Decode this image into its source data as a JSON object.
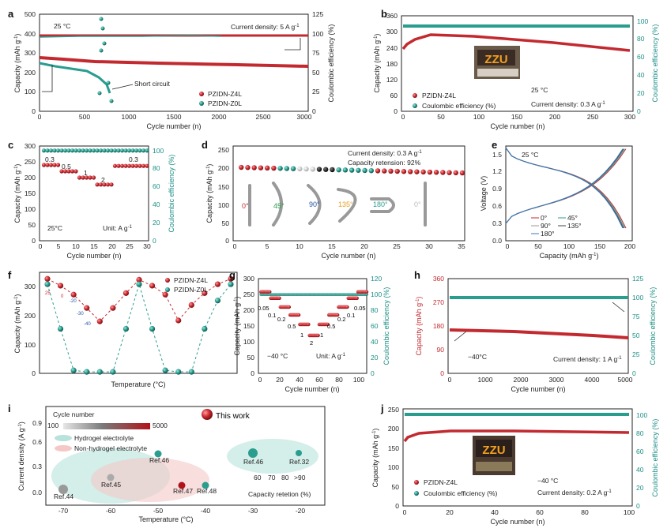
{
  "colors": {
    "red": "#c22a30",
    "teal": "#2a9d8f",
    "teal_axis": "#1d8f86",
    "dark": "#222222"
  },
  "panels": {
    "a": {
      "letter": "a",
      "temp": "25 °C",
      "note": "Current density: 5 A g",
      "note_sup": "-1",
      "short": "Short circuit",
      "legend": [
        "PZIDN-Z4L",
        "PZIDN-Z0L"
      ],
      "xlabel": "Cycle number (n)",
      "ylabel": "Capacity (mAh g",
      "ylabel_sup": "-1",
      "ylabel_end": ")",
      "y2label": "Coulombic efficiency (%)",
      "xticks": [
        "0",
        "500",
        "1000",
        "1500",
        "2000",
        "2500",
        "3000"
      ],
      "yticks": [
        "0",
        "100",
        "200",
        "300",
        "400",
        "500"
      ],
      "y2ticks": [
        "0",
        "25",
        "50",
        "75",
        "100",
        "125"
      ]
    },
    "b": {
      "letter": "b",
      "temp": "25 °C",
      "note": "Current density: 0.3 A g",
      "note_sup": "-1",
      "photo_text": "ZZU",
      "legend": [
        "PZIDN-Z4L",
        "Coulombic efficiency (%)"
      ],
      "xlabel": "Cycle number (n)",
      "ylabel": "Capacity (mAh g",
      "ylabel_sup": "-1",
      "ylabel_end": ")",
      "y2label": "Coulombic efficiency (%)",
      "xticks": [
        "0",
        "50",
        "100",
        "150",
        "200",
        "250",
        "300"
      ],
      "yticks": [
        "0",
        "60",
        "120",
        "180",
        "240",
        "300",
        "360"
      ],
      "y2ticks": [
        "0",
        "20",
        "40",
        "60",
        "80",
        "100"
      ]
    },
    "c": {
      "letter": "c",
      "temp": "25°C",
      "unit": "Unit: A g",
      "unit_sup": "-1",
      "rates": [
        "0.3",
        "0.5",
        "1",
        "2",
        "0.3"
      ],
      "xlabel": "Cycle number (n)",
      "ylabel": "Capacity (mAh g",
      "ylabel_sup": "-1",
      "ylabel_end": ")",
      "y2label": "Coulombic efficiency (%)",
      "xticks": [
        "0",
        "5",
        "10",
        "15",
        "20",
        "25",
        "30"
      ],
      "yticks": [
        "0",
        "50",
        "100",
        "150",
        "200",
        "250",
        "300"
      ],
      "y2ticks": [
        "0",
        "20",
        "40",
        "60",
        "80",
        "100"
      ]
    },
    "d": {
      "letter": "d",
      "note1": "Current density: 0.3 A g",
      "note1_sup": "-1",
      "note2": "Capacity retension: 92%",
      "angles": [
        "0°",
        "45°",
        "90°",
        "135°",
        "180°",
        "0°"
      ],
      "xlabel": "Cycle number (n)",
      "ylabel": "Capacity (mAh g",
      "ylabel_sup": "-1",
      "ylabel_end": ")",
      "xticks": [
        "0",
        "5",
        "10",
        "15",
        "20",
        "25",
        "30",
        "35"
      ],
      "yticks": [
        "0",
        "50",
        "100",
        "150",
        "200",
        "250"
      ]
    },
    "e": {
      "letter": "e",
      "temp": "25 °C",
      "legend": [
        "0°",
        "45°",
        "90°",
        "135°",
        "180°"
      ],
      "xlabel": "Capacity (mAh g",
      "xlabel_sup": "-1",
      "xlabel_end": ")",
      "ylabel": "Voltage (V)",
      "xticks": [
        "0",
        "50",
        "100",
        "150",
        "200"
      ],
      "yticks": [
        "0.0",
        "0.3",
        "0.6",
        "0.9",
        "1.2",
        "1.5"
      ]
    },
    "f": {
      "letter": "f",
      "legend": [
        "PZIDN-Z4L",
        "PZIDN-Z0L"
      ],
      "xlabel": "Temperature (°C)",
      "ylabel": "Capacity (mAh g",
      "ylabel_sup": "-1",
      "ylabel_end": ")",
      "temps": [
        "25",
        "0",
        "-20",
        "-30",
        "-40"
      ],
      "yticks": [
        "0",
        "100",
        "200",
        "300"
      ]
    },
    "g": {
      "letter": "g",
      "temp": "−40 °C",
      "unit": "Unit: A g",
      "unit_sup": "-1",
      "rates": [
        "0.05",
        "0.1",
        "0.2",
        "0.5",
        "1",
        "2",
        "1",
        "0.5",
        "0.2",
        "0.1",
        "0.05"
      ],
      "xlabel": "Cycle number (n)",
      "ylabel": "Capacity (mAh g",
      "ylabel_sup": "-1",
      "ylabel_end": ")",
      "y2label": "Coulombic efficiency (%)",
      "xticks": [
        "0",
        "20",
        "40",
        "60",
        "80",
        "100"
      ],
      "yticks": [
        "0",
        "50",
        "100",
        "150",
        "200",
        "250",
        "300"
      ],
      "y2ticks": [
        "0",
        "20",
        "40",
        "60",
        "80",
        "100",
        "120"
      ]
    },
    "h": {
      "letter": "h",
      "temp": "−40°C",
      "note": "Current density: 1 A g",
      "note_sup": "-1",
      "xlabel": "Cycle number (n)",
      "ylabel": "Capacity (mAh g",
      "ylabel_sup": "-1",
      "ylabel_end": ")",
      "y2label": "Coulombic efficiency (%)",
      "xticks": [
        "0",
        "1000",
        "2000",
        "3000",
        "4000",
        "5000"
      ],
      "yticks": [
        "0",
        "90",
        "180",
        "270",
        "360"
      ],
      "y2ticks": [
        "0",
        "25",
        "50",
        "75",
        "100",
        "125"
      ]
    },
    "i": {
      "letter": "i",
      "cycle_label": "Cycle number",
      "cb_min": "100",
      "cb_max": "5000",
      "this_work": "This work",
      "hydrogel": "Hydrogel electrolyte",
      "nonhydrogel": "Non-hydrogel electrolyte",
      "refs": [
        "Ref.44",
        "Ref.45",
        "Ref.46",
        "Ref.47",
        "Ref.48",
        "Ref.46",
        "Ref.32"
      ],
      "retention": [
        "60",
        "70",
        "80",
        "&gt;90"
      ],
      "retention_label": "Capacity retetion (%)",
      "xlabel": "Temperature (°C)",
      "ylabel": "Current density (A g",
      "ylabel_sup": "-1",
      "ylabel_end": ")",
      "xticks": [
        "-70",
        "-60",
        "-50",
        "-40",
        "-30",
        "-20"
      ],
      "yticks": [
        "0.0",
        "0.3",
        "0.6",
        "0.9"
      ]
    },
    "j": {
      "letter": "j",
      "temp": "−40 °C",
      "note": "Current density: 0.2 A g",
      "note_sup": "-1",
      "photo_text": "ZZU",
      "legend": [
        "PZIDN-Z4L",
        "Coulombic efficiency (%)"
      ],
      "xlabel": "Cycle number (n)",
      "ylabel": "Capacity (mAh g",
      "ylabel_sup": "-1",
      "ylabel_end": ")",
      "y2label": "Coulombic efficiency (%)",
      "xticks": [
        "0",
        "20",
        "40",
        "60",
        "80",
        "100"
      ],
      "yticks": [
        "0",
        "50",
        "100",
        "150",
        "200",
        "250"
      ],
      "y2ticks": [
        "0",
        "20",
        "40",
        "60",
        "80",
        "100"
      ]
    }
  },
  "chart_data": [
    {
      "panel": "a",
      "type": "line",
      "x_range": [
        0,
        3000
      ],
      "ylim": [
        0,
        500
      ],
      "y2lim": [
        0,
        125
      ],
      "series": [
        {
          "name": "PZIDN-Z4L capacity",
          "x": [
            0,
            200,
            1000,
            2000,
            3000
          ],
          "y": [
            282,
            265,
            252,
            245,
            238
          ]
        },
        {
          "name": "PZIDN-Z0L capacity",
          "x": [
            0,
            200,
            400,
            600,
            700,
            800
          ],
          "y": [
            245,
            225,
            205,
            175,
            150,
            105
          ]
        },
        {
          "name": "PZIDN-Z4L CE",
          "x": [
            0,
            3000
          ],
          "y2": [
            100,
            100
          ]
        },
        {
          "name": "PZIDN-Z0L CE",
          "x": [
            0,
            600,
            700,
            740,
            770,
            800
          ],
          "y2": [
            100,
            100,
            118,
            112,
            95,
            20
          ]
        }
      ]
    },
    {
      "panel": "b",
      "type": "line",
      "x_range": [
        0,
        300
      ],
      "ylim": [
        0,
        360
      ],
      "y2lim": [
        0,
        105
      ],
      "series": [
        {
          "name": "PZIDN-Z4L",
          "x": [
            0,
            5,
            15,
            35,
            100,
            200,
            300
          ],
          "y": [
            235,
            255,
            280,
            287,
            275,
            255,
            230
          ]
        },
        {
          "name": "Coulombic efficiency (%)",
          "x": [
            0,
            300
          ],
          "y2": [
            99,
            99
          ]
        }
      ]
    },
    {
      "panel": "c",
      "type": "line",
      "x_range": [
        0,
        30
      ],
      "ylim": [
        0,
        300
      ],
      "y2lim": [
        0,
        105
      ],
      "series": [
        {
          "name": "capacity",
          "rates": [
            "0.3",
            "0.5",
            "1",
            "2",
            "0.3"
          ],
          "values": [
            240,
            220,
            200,
            178,
            237
          ]
        },
        {
          "name": "CE",
          "y2": 100
        }
      ]
    },
    {
      "panel": "d",
      "type": "scatter",
      "x_range": [
        0,
        35
      ],
      "ylim": [
        0,
        250
      ],
      "series": [
        {
          "name": "capacity",
          "x": [
            1,
            35
          ],
          "y": [
            197,
            182
          ]
        }
      ]
    },
    {
      "panel": "e",
      "type": "line",
      "x_range": [
        0,
        200
      ],
      "ylim": [
        0,
        1.65
      ],
      "series": [
        {
          "name": "0°",
          "charge_end": 190
        },
        {
          "name": "45°",
          "charge_end": 188
        },
        {
          "name": "90°",
          "charge_end": 187
        },
        {
          "name": "135°",
          "charge_end": 186
        },
        {
          "name": "180°",
          "charge_end": 185
        }
      ]
    },
    {
      "panel": "f",
      "type": "scatter",
      "categories": [
        "25",
        "0",
        "-20",
        "-30",
        "-40",
        "-30",
        "-20",
        "0",
        "25",
        "0",
        "-20",
        "-40",
        "-20",
        "0",
        "25"
      ],
      "ylim": [
        0,
        340
      ],
      "series": [
        {
          "name": "PZIDN-Z4L",
          "values": [
            318,
            295,
            265,
            220,
            175,
            220,
            270,
            315,
            295,
            265,
            178,
            230,
            270,
            300,
            318
          ]
        },
        {
          "name": "PZIDN-Z0L",
          "values": [
            300,
            150,
            10,
            5,
            5,
            5,
            150,
            300,
            150,
            10,
            5,
            5,
            150,
            245,
            300
          ]
        }
      ]
    },
    {
      "panel": "g",
      "type": "line",
      "x_range": [
        0,
        110
      ],
      "ylim": [
        0,
        300
      ],
      "y2lim": [
        0,
        120
      ],
      "series": [
        {
          "name": "capacity",
          "rates": [
            "0.05",
            "0.1",
            "0.2",
            "0.5",
            "1",
            "2",
            "1",
            "0.5",
            "0.2",
            "0.1",
            "0.05"
          ],
          "values": [
            258,
            238,
            210,
            185,
            155,
            120,
            155,
            185,
            210,
            238,
            258
          ]
        },
        {
          "name": "CE",
          "y2": 100
        }
      ]
    },
    {
      "panel": "h",
      "type": "line",
      "x_range": [
        0,
        5000
      ],
      "ylim": [
        0,
        360
      ],
      "y2lim": [
        0,
        125
      ],
      "series": [
        {
          "name": "capacity",
          "x": [
            0,
            5000
          ],
          "y": [
            163,
            132
          ]
        },
        {
          "name": "CE",
          "y2": [
            100,
            100
          ]
        }
      ]
    },
    {
      "panel": "i",
      "type": "scatter",
      "xlim": [
        -75,
        -15
      ],
      "ylim": [
        -0.05,
        1.0
      ],
      "points": [
        {
          "label": "Ref.44",
          "x": -70,
          "y": 0.05
        },
        {
          "label": "Ref.45",
          "x": -60,
          "y": 0.2
        },
        {
          "label": "Ref.46",
          "x": -50,
          "y": 0.5
        },
        {
          "label": "Ref.47",
          "x": -45,
          "y": 0.1
        },
        {
          "label": "Ref.48",
          "x": -40,
          "y": 0.1
        }
      ]
    },
    {
      "panel": "j",
      "type": "line",
      "x_range": [
        0,
        100
      ],
      "ylim": [
        0,
        250
      ],
      "y2lim": [
        0,
        105
      ],
      "series": [
        {
          "name": "PZIDN-Z4L",
          "x": [
            0,
            3,
            10,
            30,
            60,
            100
          ],
          "y": [
            160,
            170,
            182,
            190,
            189,
            187
          ]
        },
        {
          "name": "Coulombic efficiency (%)",
          "y2": [
            100,
            100
          ]
        }
      ]
    }
  ]
}
